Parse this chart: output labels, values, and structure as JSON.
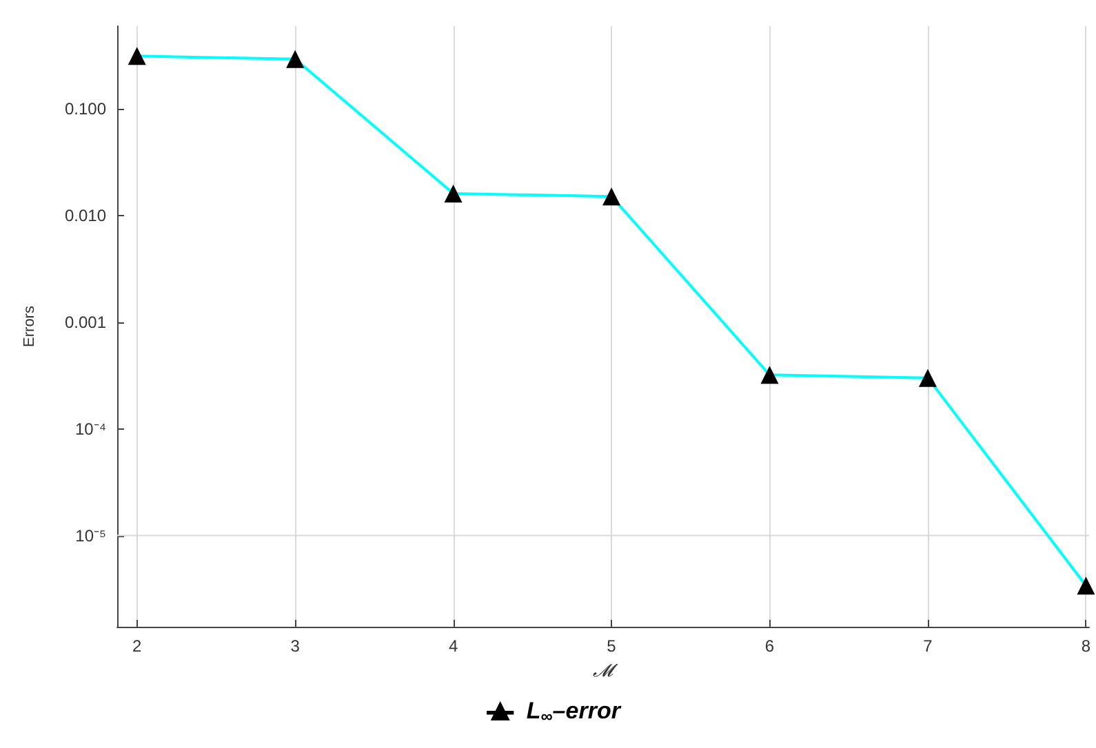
{
  "chart_data": {
    "type": "line",
    "xlabel": "𝓜",
    "ylabel": "Errors",
    "x": [
      2,
      3,
      4,
      5,
      6,
      7,
      8
    ],
    "series": [
      {
        "name": "L$_{∞}$–error",
        "color": "#00ffff",
        "colors": [
          "#000000",
          "#000000",
          "#000000",
          "#000000",
          "#000000",
          "#000000",
          "#000000"
        ],
        "values": [
          0.31,
          0.29,
          0.016,
          0.015,
          0.00032,
          0.0003,
          3.4e-06
        ]
      }
    ],
    "xlim": [
      1.875,
      8.02
    ],
    "xticks": [
      2,
      3,
      4,
      5,
      6,
      7,
      8
    ],
    "log": "y",
    "ylim": [
      1.4e-06,
      0.59
    ],
    "yticks": [
      {
        "value": 0.1,
        "label": "0.100"
      },
      {
        "value": 0.01,
        "label": "0.010"
      },
      {
        "value": 0.001,
        "label": "0.001"
      },
      {
        "value": 0.0001,
        "label": "10⁻⁴"
      },
      {
        "value": 1e-05,
        "label": "10⁻⁵"
      }
    ],
    "grid": "x",
    "ref_lines": [
      {
        "axis": "y",
        "value": 1e-05,
        "color": "#d9d9d9"
      }
    ],
    "legend": "bottom",
    "marker": "triangle",
    "line_style": "solid"
  }
}
